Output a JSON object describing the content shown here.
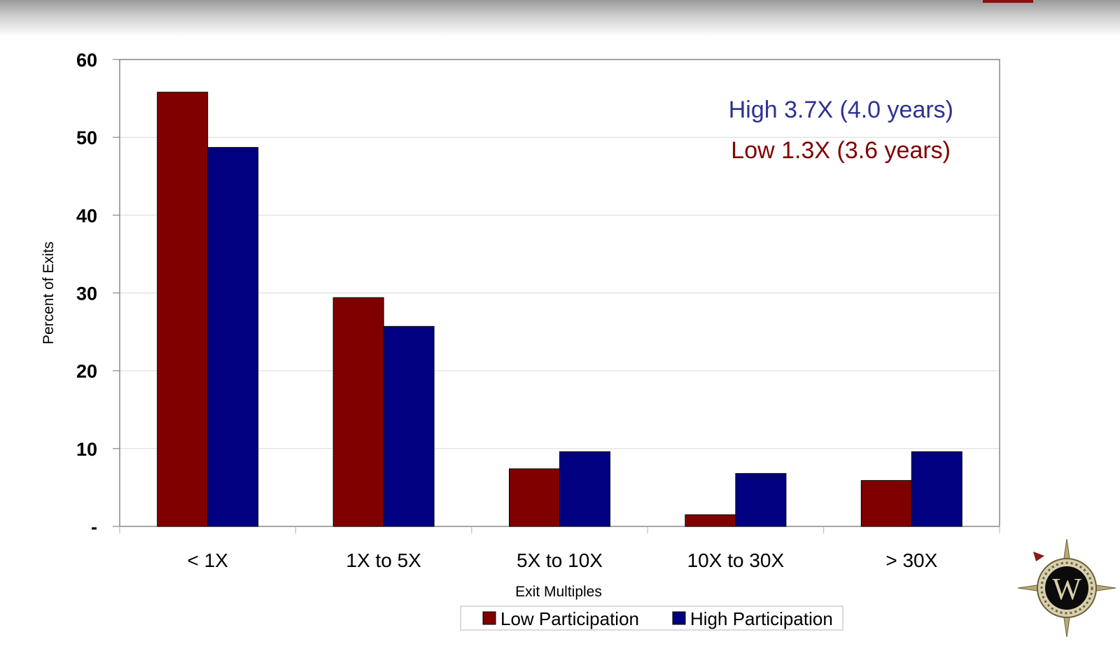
{
  "chart_data": {
    "type": "bar",
    "categories": [
      "< 1X",
      "1X to 5X",
      "5X to 10X",
      "10X to 30X",
      "> 30X"
    ],
    "series": [
      {
        "name": "Low Participation",
        "color": "#800000",
        "values": [
          55.8,
          29.4,
          7.4,
          1.5,
          5.9
        ]
      },
      {
        "name": "High Participation",
        "color": "#000080",
        "values": [
          48.7,
          25.7,
          9.6,
          6.8,
          9.6
        ]
      }
    ],
    "xlabel": "Exit Multiples",
    "ylabel": "Percent of Exits",
    "ylim": [
      0,
      60
    ],
    "yticks": [
      0,
      10,
      20,
      30,
      40,
      50,
      60
    ],
    "ytick_labels": [
      "-",
      "10",
      "20",
      "30",
      "40",
      "50",
      "60"
    ],
    "grid": true,
    "legend_position": "bottom",
    "annotations": [
      {
        "text": "High 3.7X (4.0 years)",
        "color": "#2e3192"
      },
      {
        "text": "Low 1.3X (3.6 years)",
        "color": "#800000"
      }
    ]
  },
  "logo": {
    "letter": "W",
    "icon": "compass-rose-icon"
  }
}
